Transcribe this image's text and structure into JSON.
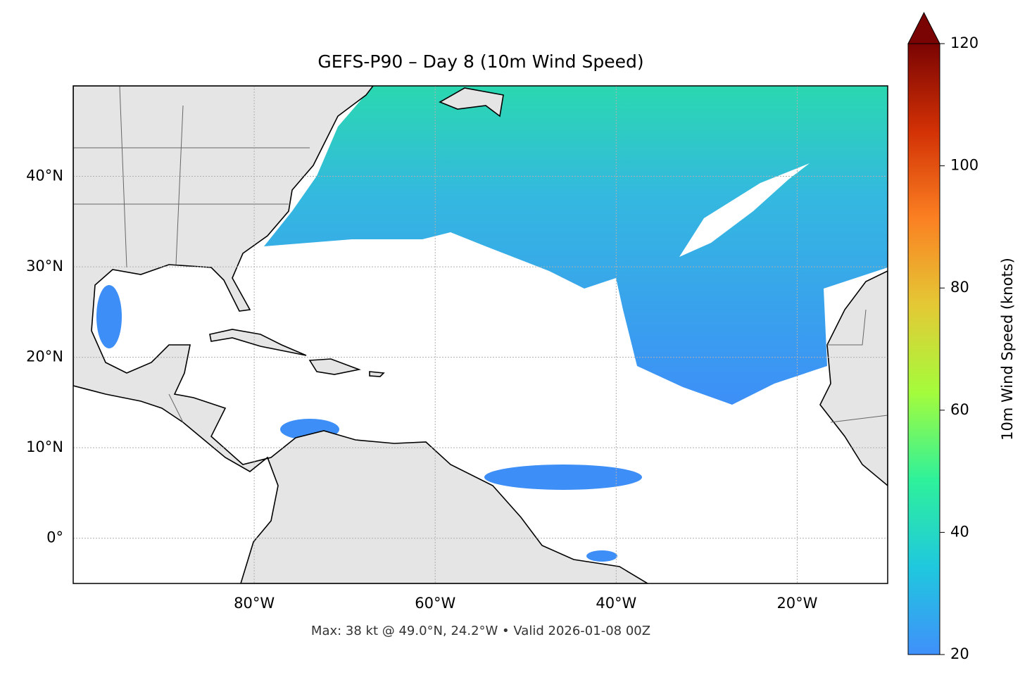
{
  "chart_data": {
    "type": "map",
    "title": "GEFS-P90 – Day 8 (10m Wind Speed)",
    "caption": "Max: 38 kt @ 49.0°N, 24.2°W • Valid 2026-01-08 00Z",
    "xlim": [
      -100,
      -10
    ],
    "ylim": [
      -5,
      50
    ],
    "xticks": [
      {
        "value": -80,
        "label": "80°W"
      },
      {
        "value": -60,
        "label": "60°W"
      },
      {
        "value": -40,
        "label": "40°W"
      },
      {
        "value": -20,
        "label": "20°W"
      }
    ],
    "yticks": [
      {
        "value": 0,
        "label": "0°"
      },
      {
        "value": 10,
        "label": "10°N"
      },
      {
        "value": 20,
        "label": "20°N"
      },
      {
        "value": 30,
        "label": "30°N"
      },
      {
        "value": 40,
        "label": "40°N"
      }
    ],
    "grid": true,
    "colorbar": {
      "label": "10m Wind Speed (knots)",
      "lim": [
        20,
        120
      ],
      "ticks": [
        20,
        40,
        60,
        80,
        100,
        120
      ],
      "colors": [
        "#4090fb",
        "#1fc8de",
        "#2ef19b",
        "#a4fc3c",
        "#e4c935",
        "#fb8022",
        "#d23105",
        "#7a0403"
      ]
    }
  }
}
